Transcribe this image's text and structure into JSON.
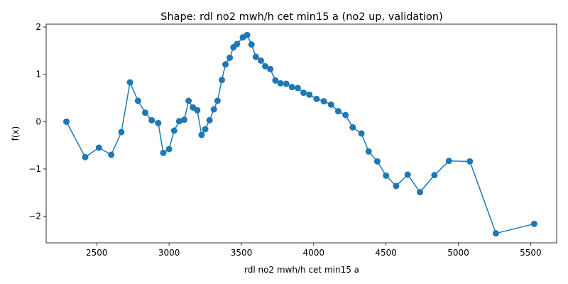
{
  "chart_data": {
    "type": "line",
    "title": "Shape: rdl no2 mwh/h cet min15 a (no2 up, validation)",
    "xlabel": "rdl no2 mwh/h cet min15 a",
    "ylabel": "f(x)",
    "xlim": [
      2150,
      5680
    ],
    "ylim": [
      -2.56,
      2.06
    ],
    "xticks": [
      2500,
      3000,
      3500,
      4000,
      4500,
      5000,
      5500
    ],
    "yticks": [
      -2,
      -1,
      0,
      1,
      2
    ],
    "grid": false,
    "legend": "none",
    "color": "#1f77b4",
    "series": [
      {
        "x": [
          2290,
          2420,
          2515,
          2600,
          2670,
          2730,
          2785,
          2835,
          2880,
          2925,
          2960,
          3000,
          3035,
          3070,
          3105,
          3135,
          3165,
          3195,
          3225,
          3250,
          3280,
          3310,
          3335,
          3365,
          3390,
          3420,
          3445,
          3470,
          3510,
          3540,
          3570,
          3600,
          3635,
          3665,
          3700,
          3735,
          3770,
          3810,
          3850,
          3890,
          3930,
          3970,
          4020,
          4070,
          4120,
          4170,
          4220,
          4270,
          4330,
          4380,
          4440,
          4500,
          4570,
          4650,
          4735,
          4835,
          4935,
          5080,
          5260,
          5525
        ],
        "values": [
          0.0,
          -0.75,
          -0.55,
          -0.7,
          -0.22,
          0.83,
          0.44,
          0.19,
          0.03,
          -0.03,
          -0.66,
          -0.58,
          -0.19,
          0.01,
          0.04,
          0.44,
          0.3,
          0.24,
          -0.28,
          -0.16,
          0.03,
          0.26,
          0.44,
          0.88,
          1.21,
          1.35,
          1.57,
          1.64,
          1.78,
          1.83,
          1.63,
          1.37,
          1.29,
          1.17,
          1.11,
          0.87,
          0.81,
          0.8,
          0.73,
          0.71,
          0.61,
          0.57,
          0.48,
          0.43,
          0.36,
          0.22,
          0.14,
          -0.12,
          -0.25,
          -0.63,
          -0.84,
          -1.14,
          -1.36,
          -1.12,
          -1.49,
          -1.13,
          -0.83,
          -0.84,
          -2.36,
          -2.16
        ]
      }
    ]
  }
}
